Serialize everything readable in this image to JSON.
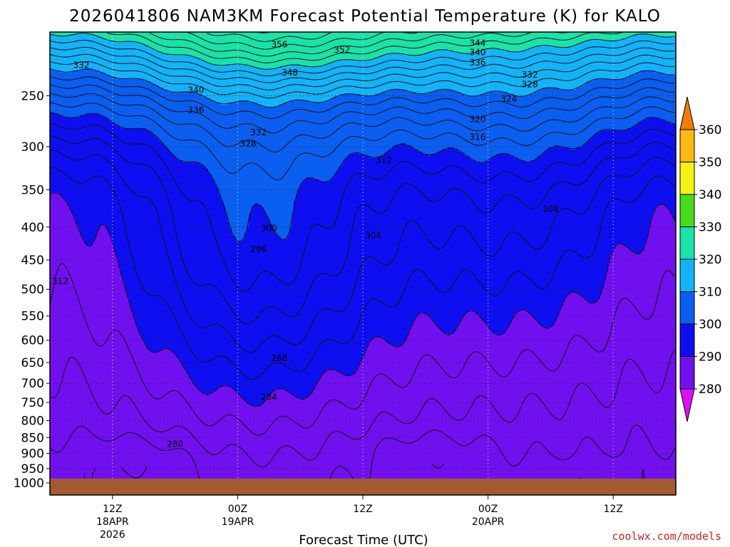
{
  "chart_data": {
    "type": "contour",
    "title": "2026041806 NAM3KM Forecast Potential Temperature (K) for KALO",
    "xlabel": "Forecast Time (UTC)",
    "credit": "coolwx.com/models",
    "y_axis": {
      "scale": "log",
      "inverted": true,
      "ticks": [
        "250",
        "300",
        "350",
        "400",
        "450",
        "500",
        "550",
        "600",
        "650",
        "700",
        "750",
        "800",
        "850",
        "900",
        "950",
        "1000"
      ],
      "range": [
        200,
        1000
      ]
    },
    "x_axis": {
      "range_hours": [
        0,
        60
      ],
      "ticks": [
        {
          "hour": 6,
          "lines": [
            "12Z",
            "18APR",
            "2026"
          ]
        },
        {
          "hour": 18,
          "lines": [
            "00Z",
            "19APR"
          ]
        },
        {
          "hour": 30,
          "lines": [
            "12Z"
          ]
        },
        {
          "hour": 42,
          "lines": [
            "00Z",
            "20APR"
          ]
        },
        {
          "hour": 54,
          "lines": [
            "12Z"
          ]
        }
      ],
      "grid": "dotted"
    },
    "colorbar": {
      "labels": [
        "280",
        "290",
        "300",
        "310",
        "320",
        "330",
        "340",
        "350",
        "360"
      ],
      "colors": [
        "#dd10f5",
        "#7010ee",
        "#0d0ff0",
        "#0a5ef0",
        "#12b3f8",
        "#19e3a6",
        "#46dc1b",
        "#f3f312",
        "#fdb812",
        "#f07c0a"
      ],
      "extend": "both"
    },
    "contour_interval": 2,
    "ground_color": "#a25a2e",
    "contour_labels": [
      {
        "value": "356",
        "hour": 22,
        "pressure": 208
      },
      {
        "value": "352",
        "hour": 28,
        "pressure": 212
      },
      {
        "value": "344",
        "hour": 41,
        "pressure": 207
      },
      {
        "value": "340",
        "hour": 41,
        "pressure": 214
      },
      {
        "value": "336",
        "hour": 41,
        "pressure": 222
      },
      {
        "value": "332",
        "hour": 3,
        "pressure": 224
      },
      {
        "value": "348",
        "hour": 23,
        "pressure": 230
      },
      {
        "value": "332",
        "hour": 46,
        "pressure": 232
      },
      {
        "value": "328",
        "hour": 46,
        "pressure": 240
      },
      {
        "value": "340",
        "hour": 14,
        "pressure": 245
      },
      {
        "value": "324",
        "hour": 44,
        "pressure": 253
      },
      {
        "value": "336",
        "hour": 14,
        "pressure": 263
      },
      {
        "value": "320",
        "hour": 41,
        "pressure": 272
      },
      {
        "value": "332",
        "hour": 20,
        "pressure": 285
      },
      {
        "value": "316",
        "hour": 41,
        "pressure": 290
      },
      {
        "value": "328",
        "hour": 19,
        "pressure": 297
      },
      {
        "value": "312",
        "hour": 32,
        "pressure": 315
      },
      {
        "value": "308",
        "hour": 48,
        "pressure": 375
      },
      {
        "value": "300",
        "hour": 21,
        "pressure": 402
      },
      {
        "value": "304",
        "hour": 31,
        "pressure": 412
      },
      {
        "value": "296",
        "hour": 20,
        "pressure": 433
      },
      {
        "value": "312",
        "hour": 1,
        "pressure": 486
      },
      {
        "value": "288",
        "hour": 22,
        "pressure": 640
      },
      {
        "value": "284",
        "hour": 21,
        "pressure": 735
      },
      {
        "value": "280",
        "hour": 12,
        "pressure": 870
      }
    ]
  }
}
